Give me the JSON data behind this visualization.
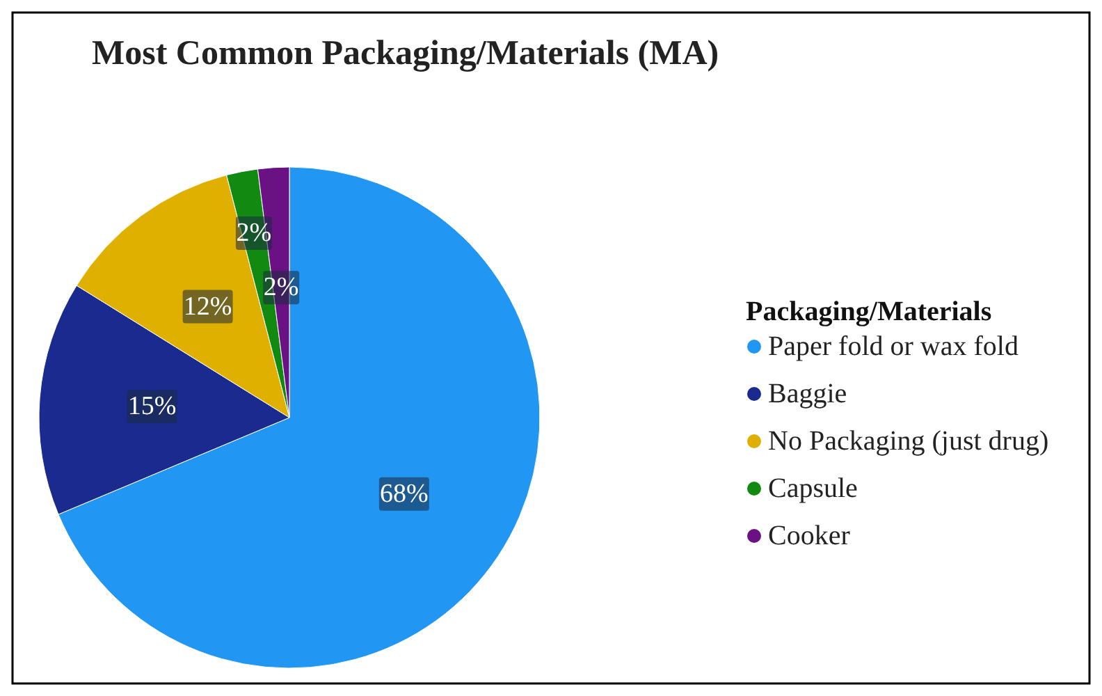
{
  "chart_data": {
    "type": "pie",
    "title": "Most Common Packaging/Materials (MA)",
    "legend_title": "Packaging/Materials",
    "legend": "right",
    "value_labels": [
      "68%",
      "15%",
      "12%",
      "2%",
      "2%"
    ],
    "categories": [
      "Paper fold or wax fold",
      "Baggie",
      "No Packaging (just drug)",
      "Capsule",
      "Cooker"
    ],
    "values": [
      68,
      15,
      12,
      2,
      2
    ],
    "colors": [
      "#2196f3",
      "#1b2a8f",
      "#e0b000",
      "#128a12",
      "#6a1283"
    ]
  }
}
